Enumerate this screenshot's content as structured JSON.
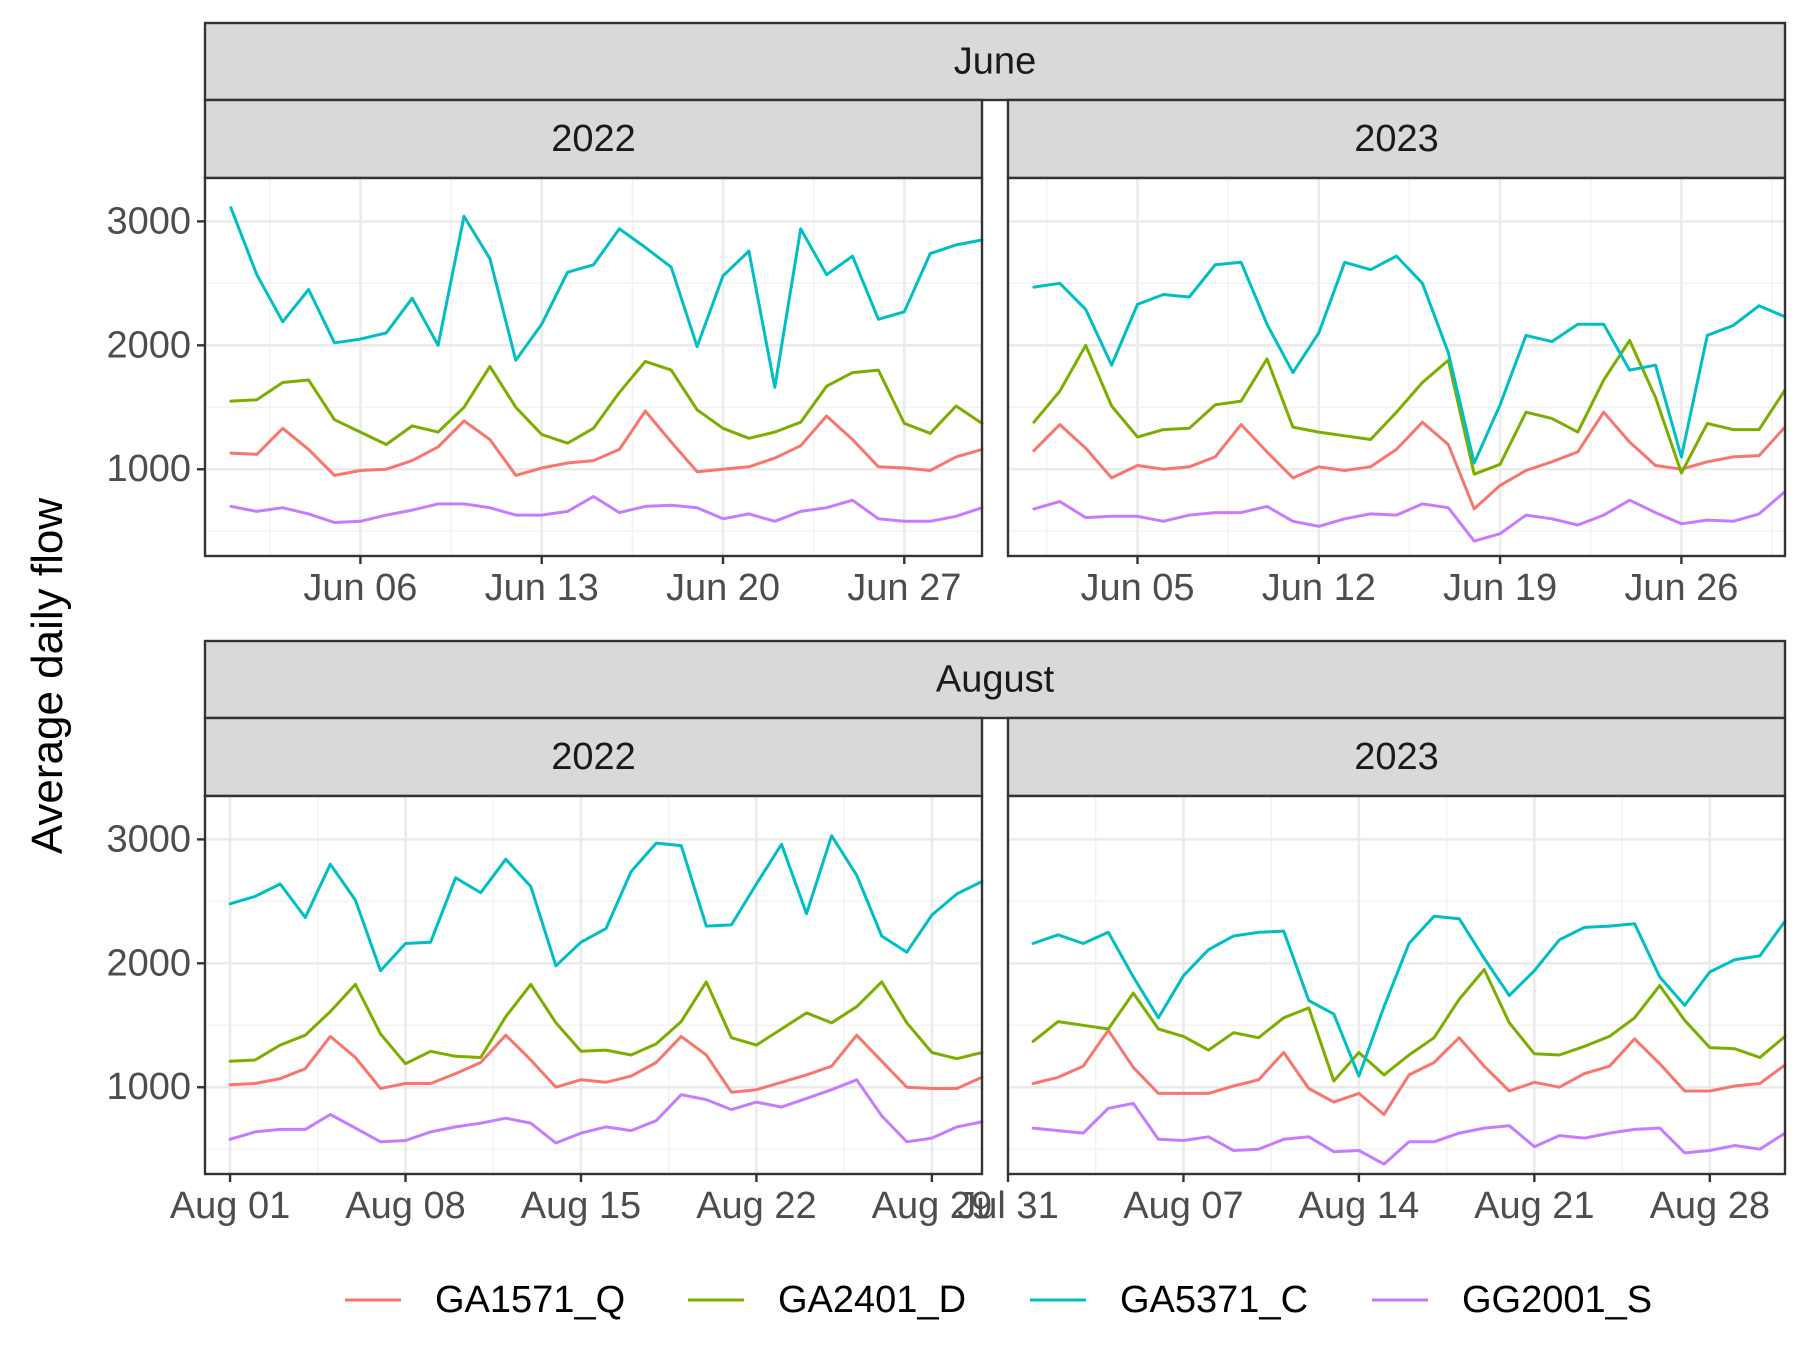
{
  "chart_data": {
    "type": "line",
    "ylabel": "Average daily flow",
    "yticks": [
      1000,
      2000,
      3000
    ],
    "ylim": [
      300,
      3350
    ],
    "legend_position": "bottom",
    "series_meta": [
      {
        "name": "GA1571_Q",
        "color": "#F8766D"
      },
      {
        "name": "GA2401_D",
        "color": "#7CAE00"
      },
      {
        "name": "GA5371_C",
        "color": "#00BFC4"
      },
      {
        "name": "GG2001_S",
        "color": "#C77CFF"
      }
    ],
    "months": [
      {
        "label": "June",
        "panels": [
          {
            "label": "2022",
            "x_start": "2022-06-01",
            "xlim": [
              "2022-05-31",
              "2022-06-30"
            ],
            "xticks": [
              {
                "date": "2022-06-06",
                "label": "Jun 06"
              },
              {
                "date": "2022-06-13",
                "label": "Jun 13"
              },
              {
                "date": "2022-06-20",
                "label": "Jun 20"
              },
              {
                "date": "2022-06-27",
                "label": "Jun 27"
              }
            ],
            "series": [
              {
                "name": "GA1571_Q",
                "values": [
                  1130,
                  1120,
                  1330,
                  1160,
                  950,
                  990,
                  1000,
                  1070,
                  1180,
                  1390,
                  1240,
                  950,
                  1010,
                  1050,
                  1070,
                  1160,
                  1470,
                  1220,
                  980,
                  1000,
                  1020,
                  1090,
                  1190,
                  1430,
                  1240,
                  1020,
                  1010,
                  990,
                  1100,
                  1160
                ]
              },
              {
                "name": "GA2401_D",
                "values": [
                  1550,
                  1560,
                  1700,
                  1720,
                  1400,
                  1300,
                  1200,
                  1350,
                  1300,
                  1500,
                  1830,
                  1500,
                  1280,
                  1210,
                  1330,
                  1620,
                  1870,
                  1800,
                  1480,
                  1330,
                  1250,
                  1300,
                  1380,
                  1670,
                  1780,
                  1800,
                  1370,
                  1290,
                  1510,
                  1370
                ]
              },
              {
                "name": "GA5371_C",
                "values": [
                  3110,
                  2570,
                  2190,
                  2450,
                  2020,
                  2050,
                  2100,
                  2380,
                  2000,
                  3040,
                  2700,
                  1880,
                  2170,
                  2590,
                  2650,
                  2940,
                  2790,
                  2630,
                  1990,
                  2560,
                  2760,
                  1660,
                  2940,
                  2570,
                  2720,
                  2210,
                  2270,
                  2740,
                  2810,
                  2850
                ]
              },
              {
                "name": "GG2001_S",
                "values": [
                  700,
                  660,
                  690,
                  640,
                  570,
                  580,
                  630,
                  670,
                  720,
                  720,
                  690,
                  630,
                  630,
                  660,
                  780,
                  650,
                  700,
                  710,
                  690,
                  600,
                  640,
                  580,
                  660,
                  690,
                  750,
                  600,
                  580,
                  580,
                  620,
                  690
                ]
              }
            ]
          },
          {
            "label": "2023",
            "x_start": "2023-06-01",
            "xlim": [
              "2023-05-31",
              "2023-06-30"
            ],
            "xticks": [
              {
                "date": "2023-06-05",
                "label": "Jun 05"
              },
              {
                "date": "2023-06-12",
                "label": "Jun 12"
              },
              {
                "date": "2023-06-19",
                "label": "Jun 19"
              },
              {
                "date": "2023-06-26",
                "label": "Jun 26"
              }
            ],
            "series": [
              {
                "name": "GA1571_Q",
                "values": [
                  1150,
                  1360,
                  1170,
                  930,
                  1030,
                  1000,
                  1020,
                  1100,
                  1360,
                  1140,
                  930,
                  1020,
                  990,
                  1020,
                  1160,
                  1380,
                  1200,
                  680,
                  870,
                  990,
                  1060,
                  1140,
                  1460,
                  1220,
                  1030,
                  1000,
                  1060,
                  1100,
                  1110,
                  1340
                ]
              },
              {
                "name": "GA2401_D",
                "values": [
                  1380,
                  1630,
                  2000,
                  1510,
                  1260,
                  1320,
                  1330,
                  1520,
                  1550,
                  1890,
                  1340,
                  1300,
                  1270,
                  1240,
                  1460,
                  1700,
                  1880,
                  960,
                  1040,
                  1460,
                  1410,
                  1300,
                  1720,
                  2040,
                  1580,
                  970,
                  1370,
                  1320,
                  1320,
                  1640
                ]
              },
              {
                "name": "GA5371_C",
                "values": [
                  2470,
                  2500,
                  2290,
                  1840,
                  2330,
                  2410,
                  2390,
                  2650,
                  2670,
                  2170,
                  1780,
                  2100,
                  2670,
                  2610,
                  2720,
                  2500,
                  1940,
                  1050,
                  1520,
                  2080,
                  2030,
                  2170,
                  2170,
                  1800,
                  1840,
                  1100,
                  2080,
                  2160,
                  2320,
                  2230
                ]
              },
              {
                "name": "GG2001_S",
                "values": [
                  680,
                  740,
                  610,
                  620,
                  620,
                  580,
                  630,
                  650,
                  650,
                  700,
                  580,
                  540,
                  600,
                  640,
                  630,
                  720,
                  690,
                  420,
                  480,
                  630,
                  600,
                  550,
                  630,
                  750,
                  650,
                  560,
                  590,
                  580,
                  640,
                  820
                ]
              }
            ]
          }
        ]
      },
      {
        "label": "August",
        "panels": [
          {
            "label": "2022",
            "x_start": "2022-08-01",
            "xlim": [
              "2022-07-31",
              "2022-08-31"
            ],
            "xticks": [
              {
                "date": "2022-08-01",
                "label": "Aug 01"
              },
              {
                "date": "2022-08-08",
                "label": "Aug 08"
              },
              {
                "date": "2022-08-15",
                "label": "Aug 15"
              },
              {
                "date": "2022-08-22",
                "label": "Aug 22"
              },
              {
                "date": "2022-08-29",
                "label": "Aug 29"
              }
            ],
            "series": [
              {
                "name": "GA1571_Q",
                "values": [
                  1020,
                  1030,
                  1070,
                  1150,
                  1410,
                  1240,
                  990,
                  1030,
                  1030,
                  1110,
                  1200,
                  1420,
                  1220,
                  1000,
                  1060,
                  1040,
                  1090,
                  1200,
                  1410,
                  1260,
                  960,
                  980,
                  1040,
                  1100,
                  1170,
                  1420,
                  1210,
                  1000,
                  990,
                  990,
                  1080
                ]
              },
              {
                "name": "GA2401_D",
                "values": [
                  1210,
                  1220,
                  1340,
                  1420,
                  1610,
                  1830,
                  1430,
                  1190,
                  1290,
                  1250,
                  1240,
                  1570,
                  1830,
                  1520,
                  1290,
                  1300,
                  1260,
                  1350,
                  1530,
                  1850,
                  1400,
                  1340,
                  1470,
                  1600,
                  1520,
                  1650,
                  1850,
                  1520,
                  1280,
                  1230,
                  1280
                ]
              },
              {
                "name": "GA5371_C",
                "values": [
                  2480,
                  2540,
                  2640,
                  2370,
                  2800,
                  2510,
                  1940,
                  2160,
                  2170,
                  2690,
                  2570,
                  2840,
                  2620,
                  1980,
                  2170,
                  2280,
                  2740,
                  2970,
                  2950,
                  2300,
                  2310,
                  2640,
                  2960,
                  2400,
                  3030,
                  2710,
                  2220,
                  2090,
                  2390,
                  2560,
                  2660
                ]
              },
              {
                "name": "GG2001_S",
                "values": [
                  580,
                  640,
                  660,
                  660,
                  780,
                  670,
                  560,
                  570,
                  640,
                  680,
                  710,
                  750,
                  710,
                  550,
                  630,
                  680,
                  650,
                  730,
                  940,
                  900,
                  820,
                  880,
                  840,
                  910,
                  980,
                  1060,
                  770,
                  560,
                  590,
                  680,
                  720
                ]
              }
            ]
          },
          {
            "label": "2023",
            "x_start": "2023-08-01",
            "xlim": [
              "2023-07-31",
              "2023-08-31"
            ],
            "xticks": [
              {
                "date": "2023-07-31",
                "label": "Jul 31"
              },
              {
                "date": "2023-08-07",
                "label": "Aug 07"
              },
              {
                "date": "2023-08-14",
                "label": "Aug 14"
              },
              {
                "date": "2023-08-21",
                "label": "Aug 21"
              },
              {
                "date": "2023-08-28",
                "label": "Aug 28"
              }
            ],
            "series": [
              {
                "name": "GA1571_Q",
                "values": [
                  1030,
                  1080,
                  1170,
                  1460,
                  1160,
                  950,
                  950,
                  950,
                  1010,
                  1060,
                  1280,
                  990,
                  880,
                  950,
                  780,
                  1100,
                  1200,
                  1400,
                  1170,
                  970,
                  1040,
                  1000,
                  1110,
                  1170,
                  1390,
                  1190,
                  970,
                  970,
                  1010,
                  1030,
                  1180
                ]
              },
              {
                "name": "GA2401_D",
                "values": [
                  1370,
                  1530,
                  1500,
                  1470,
                  1760,
                  1470,
                  1410,
                  1300,
                  1440,
                  1400,
                  1560,
                  1640,
                  1050,
                  1280,
                  1100,
                  1260,
                  1400,
                  1710,
                  1950,
                  1520,
                  1270,
                  1260,
                  1330,
                  1410,
                  1560,
                  1820,
                  1540,
                  1320,
                  1310,
                  1240,
                  1410
                ]
              },
              {
                "name": "GA5371_C",
                "values": [
                  2160,
                  2230,
                  2160,
                  2250,
                  1890,
                  1560,
                  1900,
                  2110,
                  2220,
                  2250,
                  2260,
                  1700,
                  1590,
                  1090,
                  1650,
                  2160,
                  2380,
                  2360,
                  2040,
                  1740,
                  1940,
                  2190,
                  2290,
                  2300,
                  2320,
                  1890,
                  1660,
                  1930,
                  2030,
                  2060,
                  2340
                ]
              },
              {
                "name": "GG2001_S",
                "values": [
                  670,
                  650,
                  630,
                  830,
                  870,
                  580,
                  570,
                  600,
                  490,
                  500,
                  580,
                  600,
                  480,
                  490,
                  380,
                  560,
                  560,
                  630,
                  670,
                  690,
                  520,
                  610,
                  590,
                  630,
                  660,
                  670,
                  470,
                  490,
                  530,
                  500,
                  630
                ]
              }
            ]
          }
        ]
      }
    ]
  }
}
